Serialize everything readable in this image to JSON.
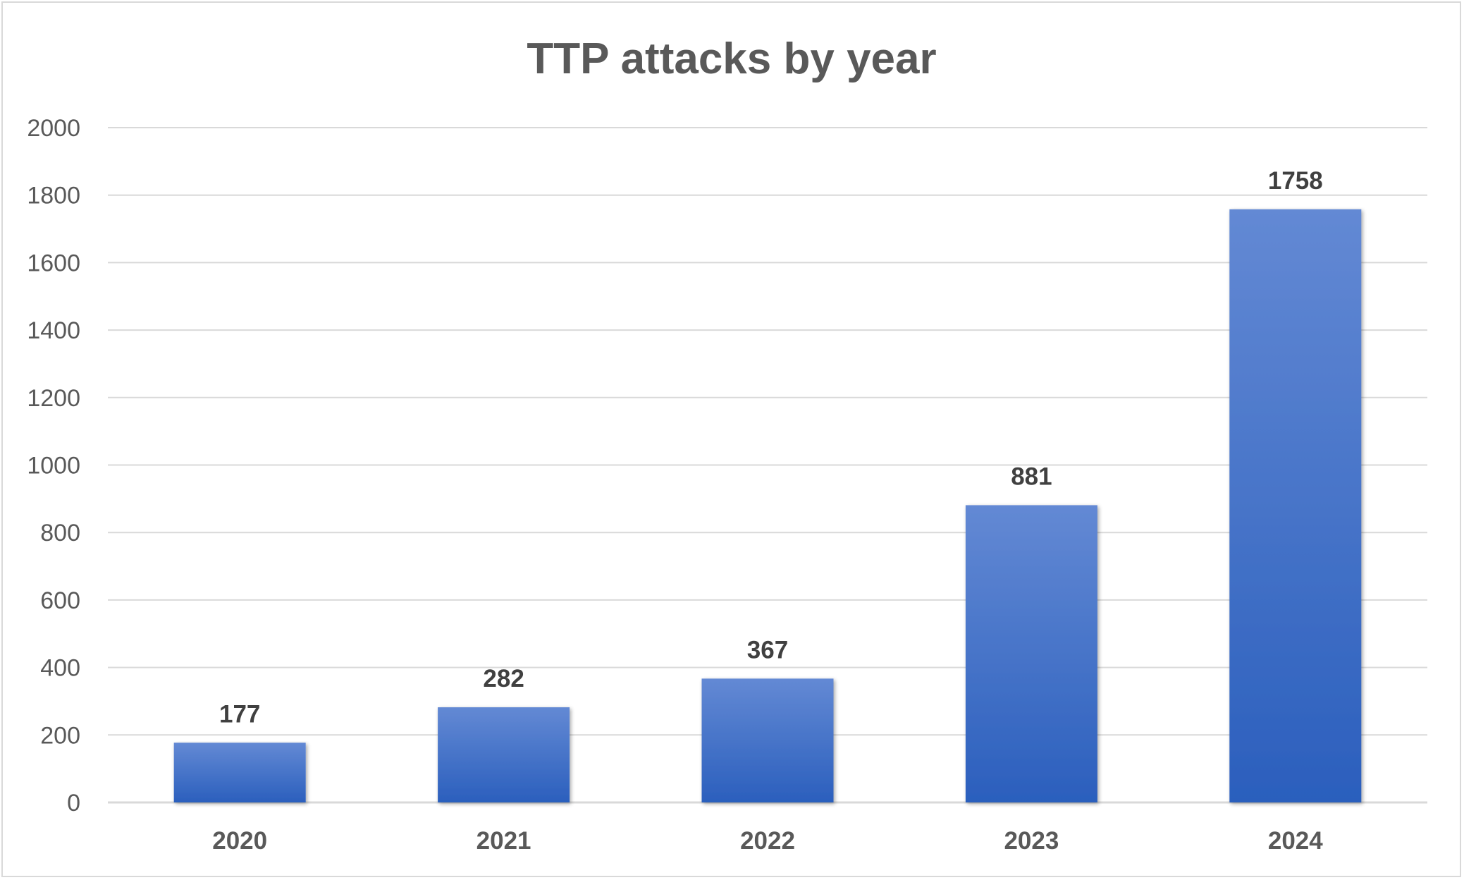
{
  "chart_data": {
    "type": "bar",
    "title": "TTP attacks by year",
    "xlabel": "",
    "ylabel": "",
    "categories": [
      "2020",
      "2021",
      "2022",
      "2023",
      "2024"
    ],
    "values": [
      177,
      282,
      367,
      881,
      1758
    ],
    "ylim": [
      0,
      2000
    ],
    "yticks": [
      "0",
      "200",
      "400",
      "600",
      "800",
      "1000",
      "1200",
      "1400",
      "1600",
      "1800",
      "2000"
    ],
    "data_labels": [
      "177",
      "282",
      "367",
      "881",
      "1758"
    ],
    "grid": true,
    "legend": "none",
    "colors": {
      "bar_top": "#6389d4",
      "bar_bottom": "#2b5fbd",
      "grid": "#d9d9d9",
      "axis_text": "#595959",
      "label_text": "#404040"
    }
  }
}
